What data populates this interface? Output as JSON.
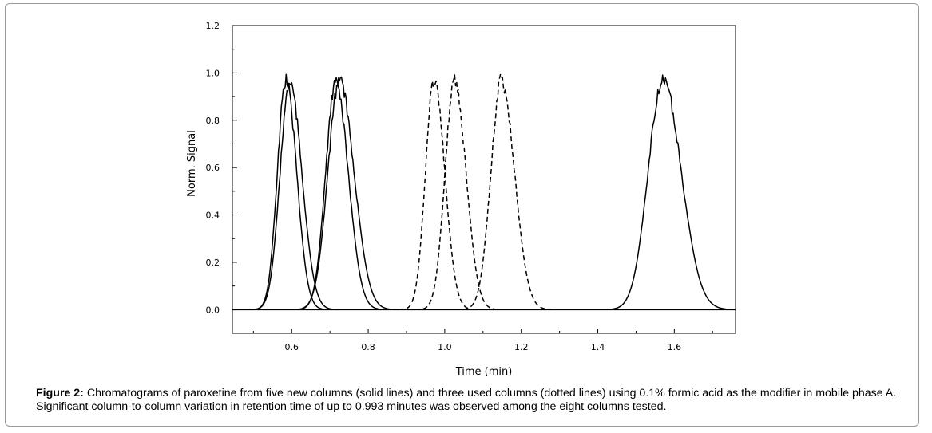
{
  "chart_data": {
    "type": "line",
    "xlabel": "Time (min)",
    "ylabel": "Norm. Signal",
    "xlim": [
      0.445,
      1.76
    ],
    "ylim": [
      -0.1,
      1.2
    ],
    "xticks": [
      0.6,
      0.8,
      1.0,
      1.2,
      1.4,
      1.6
    ],
    "xtick_labels": [
      "0.6",
      "0.8",
      "1.0",
      "1.2",
      "1.4",
      "1.6"
    ],
    "yticks": [
      0.0,
      0.2,
      0.4,
      0.6,
      0.8,
      1.0,
      1.2
    ],
    "ytick_labels": [
      "0.0",
      "0.2",
      "0.4",
      "0.6",
      "0.8",
      "1.0",
      "1.2"
    ],
    "grid": false,
    "series": [
      {
        "style": "solid",
        "peak_x": 0.585,
        "sigma": 0.022,
        "height": 1.0
      },
      {
        "style": "solid",
        "peak_x": 0.595,
        "sigma": 0.025,
        "height": 0.99
      },
      {
        "style": "solid",
        "peak_x": 0.715,
        "sigma": 0.026,
        "height": 0.99
      },
      {
        "style": "solid",
        "peak_x": 0.725,
        "sigma": 0.03,
        "height": 1.0
      },
      {
        "style": "dashed",
        "peak_x": 0.972,
        "sigma": 0.022,
        "height": 1.0
      },
      {
        "style": "dashed",
        "peak_x": 1.025,
        "sigma": 0.024,
        "height": 1.0
      },
      {
        "style": "dashed",
        "peak_x": 1.148,
        "sigma": 0.027,
        "height": 1.0
      },
      {
        "style": "solid",
        "peak_x": 1.57,
        "sigma": 0.038,
        "height": 1.0
      }
    ]
  },
  "caption": {
    "label": "Figure 2:",
    "text": " Chromatograms of paroxetine from five new columns (solid lines) and three used columns (dotted lines) using 0.1% formic acid as the modifier in mobile phase A. Significant column-to-column variation in retention time of up to 0.993 minutes was observed among the eight columns tested."
  }
}
